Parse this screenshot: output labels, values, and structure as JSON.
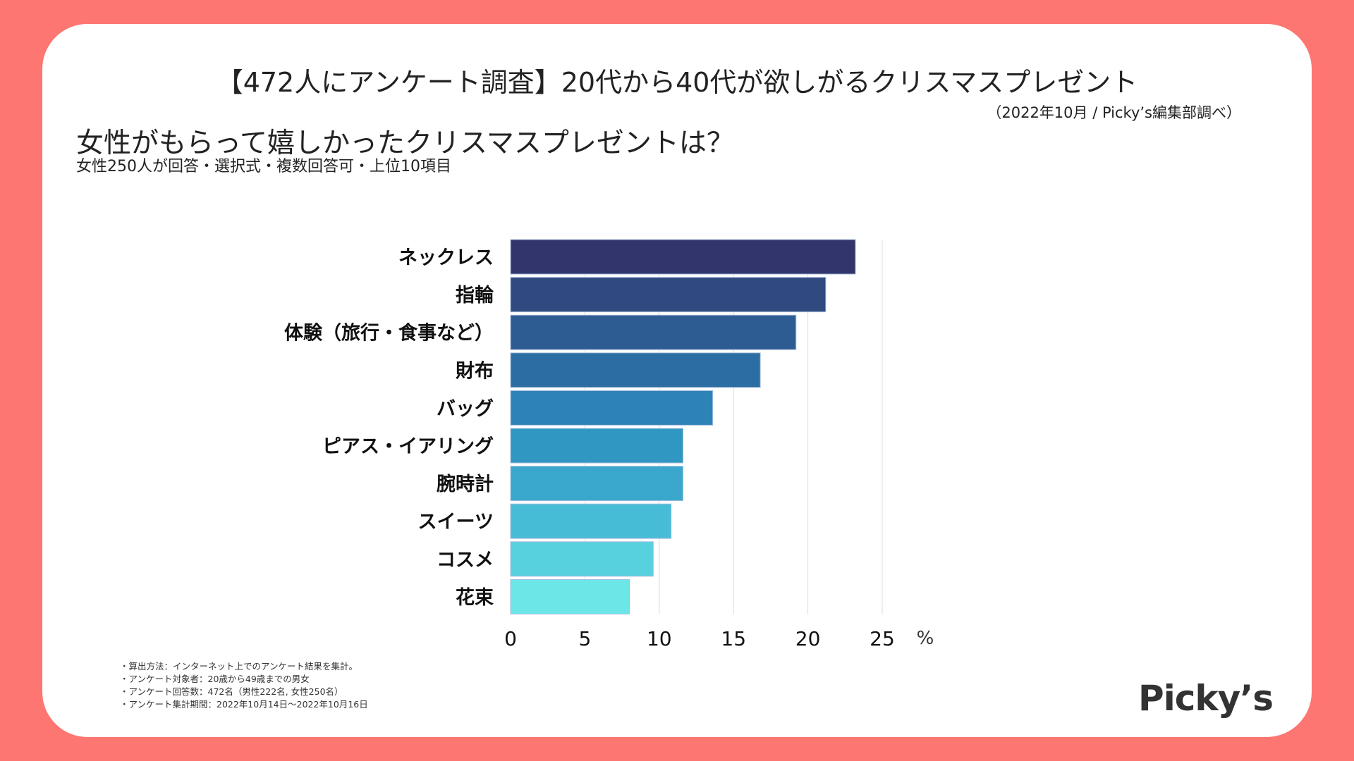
{
  "header": {
    "title": "【472人にアンケート調査】20代から40代が欲しがるクリスマスプレゼント",
    "source": "（2022年10月 / Picky’s編集部調べ）",
    "question": "女性がもらって嬉しかったクリスマスプレゼントは？",
    "subtitle": "女性250人が回答・選択式・複数回答可・上位10項目"
  },
  "chart_data": {
    "type": "bar",
    "orientation": "horizontal",
    "categories": [
      "ネックレス",
      "指輪",
      "体験（旅行・食事など）",
      "財布",
      "バッグ",
      "ピアス・イアリング",
      "腕時計",
      "スイーツ",
      "コスメ",
      "花束"
    ],
    "values": [
      23.2,
      21.2,
      19.2,
      16.8,
      13.6,
      11.6,
      11.6,
      10.8,
      9.6,
      8.0
    ],
    "colors": [
      "#31356b",
      "#30497f",
      "#2d5c92",
      "#2c6ea3",
      "#2d83b6",
      "#3097c2",
      "#3aa8cc",
      "#46bcd6",
      "#58d1df",
      "#6de6e8"
    ],
    "xlim": [
      0,
      25
    ],
    "xticks": [
      "0",
      "5",
      "10",
      "15",
      "20",
      "25"
    ],
    "xunit": "%",
    "grid": true
  },
  "notes": [
    "・算出方法：インターネット上でのアンケート結果を集計。",
    "・アンケート対象者：20歳から49歳までの男女",
    "・アンケート回答数：472名（男性222名, 女性250名）",
    "・アンケート集計期間：2022年10月14日〜2022年10月16日"
  ],
  "logo": "Picky’s",
  "colors": {
    "background": "#fe7671",
    "card": "#ffffff"
  }
}
